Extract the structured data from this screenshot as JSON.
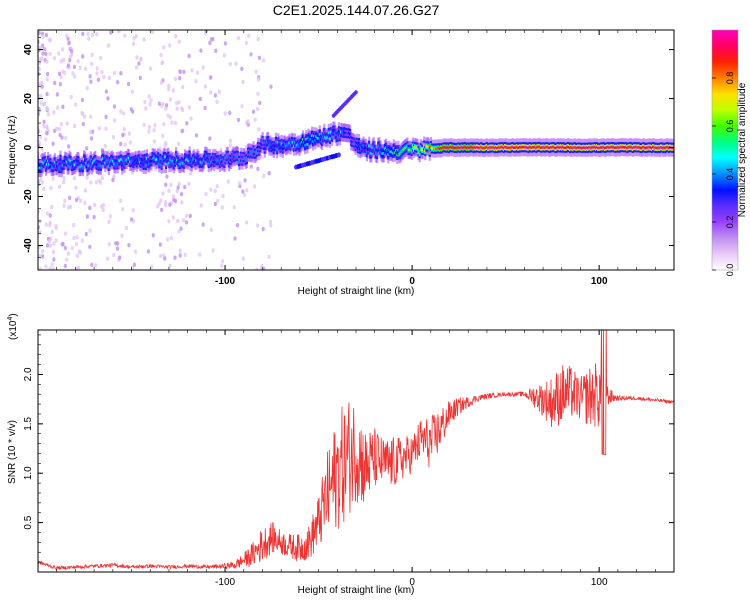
{
  "figure": {
    "title": "C2E1.2025.144.07.26.G27"
  },
  "colorbar": {
    "label": "Normalized spectral amplitude",
    "ticks": [
      0.0,
      0.2,
      0.4,
      0.6,
      0.8
    ],
    "tick_labels": [
      "0.0",
      "0.2",
      "0.4",
      "0.6",
      "0.8"
    ],
    "colors": [
      "#ffffff",
      "#e8c8f8",
      "#c090f0",
      "#9a40ff",
      "#5a2dff",
      "#0010ff",
      "#0090ff",
      "#00ffff",
      "#00ff80",
      "#40ff00",
      "#c0ff00",
      "#ffe000",
      "#ff8000",
      "#ff2000",
      "#ff0060",
      "#ff00c0"
    ]
  },
  "chart_data": [
    {
      "type": "heatmap",
      "name": "spectrogram",
      "xlabel": "Height of straight line (km)",
      "ylabel": "Frequency (Hz)",
      "xlim": [
        -200,
        140
      ],
      "ylim": [
        -50,
        48
      ],
      "x_ticks": [
        -100,
        0,
        100
      ],
      "x_tick_labels": [
        "-100",
        "0",
        "100"
      ],
      "y_ticks": [
        -40,
        -20,
        0,
        20,
        40
      ],
      "y_tick_labels": [
        "-40",
        "-20",
        "0",
        "20",
        "40"
      ],
      "ridge": {
        "x": [
          -200,
          -180,
          -160,
          -140,
          -120,
          -100,
          -90,
          -80,
          -70,
          -60,
          -50,
          -40,
          -35,
          -30,
          -25,
          -20,
          -10,
          0,
          20,
          60,
          100,
          140
        ],
        "y": [
          -7,
          -6.5,
          -6,
          -5.5,
          -5,
          -5,
          -4,
          1,
          1,
          2,
          4,
          6,
          6,
          1,
          -1,
          -1,
          -1.5,
          -1,
          0,
          0,
          0,
          0
        ],
        "amplitude": [
          0.45,
          0.4,
          0.42,
          0.4,
          0.42,
          0.35,
          0.35,
          0.35,
          0.4,
          0.45,
          0.45,
          0.4,
          0.35,
          0.35,
          0.4,
          0.42,
          0.5,
          0.62,
          0.88,
          0.92,
          0.92,
          0.92
        ]
      },
      "color_scale": [
        0,
        1
      ]
    },
    {
      "type": "line",
      "name": "snr",
      "xlabel": "Height of straight line (km)",
      "ylabel": "SNR (10 * v/v)",
      "y_multiplier_label": "(x10",
      "y_multiplier_exp": "4",
      "xlim": [
        -200,
        140
      ],
      "ylim": [
        0,
        2.45
      ],
      "x_ticks": [
        -100,
        0,
        100
      ],
      "x_tick_labels": [
        "-100",
        "0",
        "100"
      ],
      "y_ticks": [
        0.5,
        1.0,
        1.5,
        2.0
      ],
      "y_tick_labels": [
        "0.5",
        "1.0",
        "1.5",
        "2.0"
      ],
      "color": "#ee3333",
      "series": [
        {
          "x": [
            -200,
            -190,
            -180,
            -170,
            -160,
            -150,
            -140,
            -130,
            -120,
            -110,
            -100,
            -95,
            -90,
            -85,
            -80,
            -75,
            -70,
            -65,
            -60,
            -55,
            -50,
            -45,
            -40,
            -35,
            -30,
            -25,
            -20,
            -15,
            -10,
            -5,
            0,
            5,
            10,
            15,
            20,
            25,
            30,
            35,
            40,
            50,
            60,
            65,
            70,
            75,
            80,
            85,
            90,
            95,
            100,
            105,
            110,
            120,
            130,
            140
          ],
          "y": [
            0.1,
            0.04,
            0.05,
            0.06,
            0.07,
            0.05,
            0.06,
            0.05,
            0.06,
            0.05,
            0.06,
            0.07,
            0.12,
            0.18,
            0.28,
            0.35,
            0.3,
            0.26,
            0.24,
            0.3,
            0.5,
            0.8,
            1.0,
            1.15,
            1.25,
            1.05,
            1.15,
            1.1,
            1.1,
            1.15,
            1.2,
            1.35,
            1.3,
            1.45,
            1.6,
            1.68,
            1.72,
            1.76,
            1.78,
            1.8,
            1.8,
            1.78,
            1.75,
            1.72,
            1.8,
            1.82,
            1.75,
            1.78,
            1.8,
            1.78,
            1.76,
            1.76,
            1.74,
            1.72
          ],
          "noise": [
            0.02,
            0.02,
            0.02,
            0.02,
            0.02,
            0.02,
            0.02,
            0.02,
            0.02,
            0.02,
            0.03,
            0.05,
            0.08,
            0.14,
            0.2,
            0.18,
            0.14,
            0.14,
            0.16,
            0.2,
            0.32,
            0.5,
            0.65,
            0.7,
            0.6,
            0.45,
            0.35,
            0.28,
            0.3,
            0.25,
            0.22,
            0.25,
            0.3,
            0.25,
            0.15,
            0.1,
            0.06,
            0.04,
            0.03,
            0.02,
            0.03,
            0.12,
            0.2,
            0.3,
            0.35,
            0.3,
            0.25,
            0.35,
            0.4,
            0.1,
            0.03,
            0.02,
            0.02,
            0.02
          ]
        }
      ]
    }
  ]
}
